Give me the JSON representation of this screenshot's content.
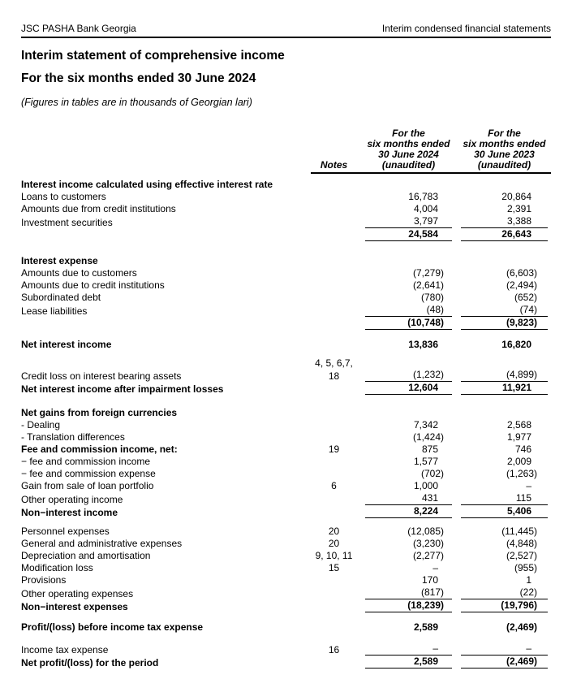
{
  "page_header": {
    "left": "JSC PASHA Bank Georgia",
    "right": "Interim condensed financial statements"
  },
  "title": {
    "line1": "Interim statement of comprehensive income",
    "line2": "For the six months ended 30 June 2024",
    "note": "(Figures in tables are in thousands of Georgian lari)"
  },
  "table": {
    "columns": {
      "notes_label": "Notes",
      "col_2024": [
        "For the",
        "six months ended",
        "30 June 2024",
        "(unaudited)"
      ],
      "col_2023": [
        "For the",
        "six months ended",
        "30 June 2023",
        "(unaudited)"
      ]
    },
    "rows": [
      {
        "label": "Interest income calculated using effective interest rate",
        "notes": "",
        "v2024": "",
        "v2023": "",
        "bold_label": true,
        "bold_values": false,
        "underline": false,
        "space_before": 0
      },
      {
        "label": "Loans to customers",
        "notes": "",
        "v2024": "16,783",
        "v2023": "20,864",
        "bold_label": false,
        "bold_values": false,
        "underline": false,
        "space_before": 0
      },
      {
        "label": "Amounts due from credit institutions",
        "notes": "",
        "v2024": "4,004",
        "v2023": "2,391",
        "bold_label": false,
        "bold_values": false,
        "underline": false,
        "space_before": 0
      },
      {
        "label": "Investment securities",
        "notes": "",
        "v2024": "3,797",
        "v2023": "3,388",
        "bold_label": false,
        "bold_values": false,
        "underline": true,
        "space_before": 1
      },
      {
        "label": "",
        "notes": "",
        "v2024": "24,584",
        "v2023": "26,643",
        "bold_label": false,
        "bold_values": true,
        "underline": true,
        "space_before": 0
      },
      {
        "label": "Interest expense",
        "notes": "",
        "v2024": "",
        "v2023": "",
        "bold_label": true,
        "bold_values": false,
        "underline": false,
        "space_before": 16
      },
      {
        "label": "Amounts due to customers",
        "notes": "",
        "v2024": "(7,279)",
        "v2023": "(6,603)",
        "bold_label": false,
        "bold_values": false,
        "underline": false,
        "space_before": 0
      },
      {
        "label": "Amounts due to credit institutions",
        "notes": "",
        "v2024": "(2,641)",
        "v2023": "(2,494)",
        "bold_label": false,
        "bold_values": false,
        "underline": false,
        "space_before": 0
      },
      {
        "label": "Subordinated debt",
        "notes": "",
        "v2024": "(780)",
        "v2023": "(652)",
        "bold_label": false,
        "bold_values": false,
        "underline": false,
        "space_before": 0
      },
      {
        "label": "Lease liabilities",
        "notes": "",
        "v2024": "(48)",
        "v2023": "(74)",
        "bold_label": false,
        "bold_values": false,
        "underline": true,
        "space_before": 1
      },
      {
        "label": "",
        "notes": "",
        "v2024": "(10,748)",
        "v2023": "(9,823)",
        "bold_label": false,
        "bold_values": true,
        "underline": true,
        "space_before": 0
      },
      {
        "label": "Net interest income",
        "notes": "",
        "v2024": "13,836",
        "v2023": "16,820",
        "bold_label": true,
        "bold_values": true,
        "underline": false,
        "space_before": 10
      },
      {
        "label": "",
        "notes": "4, 5, 6,7,",
        "v2024": "",
        "v2023": "",
        "bold_label": false,
        "bold_values": false,
        "underline": false,
        "space_before": 8
      },
      {
        "label": "Credit loss on interest bearing assets",
        "notes": "18",
        "v2024": "(1,232)",
        "v2023": "(4,899)",
        "bold_label": false,
        "bold_values": false,
        "underline": true,
        "space_before": 0
      },
      {
        "label": "Net interest income after impairment losses",
        "notes": "",
        "v2024": "12,604",
        "v2023": "11,921",
        "bold_label": true,
        "bold_values": true,
        "underline": true,
        "space_before": 0
      },
      {
        "label": "Net gains from foreign currencies",
        "notes": "",
        "v2024": "",
        "v2023": "",
        "bold_label": true,
        "bold_values": false,
        "underline": false,
        "space_before": 14
      },
      {
        "label": "- Dealing",
        "notes": "",
        "v2024": "7,342",
        "v2023": "2,568",
        "bold_label": false,
        "bold_values": false,
        "underline": false,
        "space_before": 0
      },
      {
        "label": "- Translation differences",
        "notes": "",
        "v2024": "(1,424)",
        "v2023": "1,977",
        "bold_label": false,
        "bold_values": false,
        "underline": false,
        "space_before": 0
      },
      {
        "label": "Fee and commission income, net:",
        "notes": "19",
        "v2024": "875",
        "v2023": "746",
        "bold_label": true,
        "bold_values": false,
        "underline": false,
        "space_before": 0
      },
      {
        "label": "− fee and commission income",
        "notes": "",
        "v2024": "1,577",
        "v2023": "2,009",
        "bold_label": false,
        "bold_values": false,
        "underline": false,
        "space_before": 0
      },
      {
        "label": "− fee and commission expense",
        "notes": "",
        "v2024": "(702)",
        "v2023": "(1,263)",
        "bold_label": false,
        "bold_values": false,
        "underline": false,
        "space_before": 0
      },
      {
        "label": "Gain from sale of loan portfolio",
        "notes": "6",
        "v2024": "1,000",
        "v2023": "–",
        "bold_label": false,
        "bold_values": false,
        "underline": false,
        "space_before": 0
      },
      {
        "label": "Other operating income",
        "notes": "",
        "v2024": "431",
        "v2023": "115",
        "bold_label": false,
        "bold_values": false,
        "underline": true,
        "space_before": 1
      },
      {
        "label": "Non−interest income",
        "notes": "",
        "v2024": "8,224",
        "v2023": "5,406",
        "bold_label": true,
        "bold_values": true,
        "underline": true,
        "space_before": 0
      },
      {
        "label": "Personnel expenses",
        "notes": "20",
        "v2024": "(12,085)",
        "v2023": "(11,445)",
        "bold_label": false,
        "bold_values": false,
        "underline": false,
        "space_before": 8
      },
      {
        "label": "General and administrative expenses",
        "notes": "20",
        "v2024": "(3,230)",
        "v2023": "(4,848)",
        "bold_label": false,
        "bold_values": false,
        "underline": false,
        "space_before": 0
      },
      {
        "label": "Depreciation and amortisation",
        "notes": "9, 10, 11",
        "v2024": "(2,277)",
        "v2023": "(2,527)",
        "bold_label": false,
        "bold_values": false,
        "underline": false,
        "space_before": 0
      },
      {
        "label": "Modification loss",
        "notes": "15",
        "v2024": "–",
        "v2023": "(955)",
        "bold_label": false,
        "bold_values": false,
        "underline": false,
        "space_before": 0
      },
      {
        "label": "Provisions",
        "notes": "",
        "v2024": "170",
        "v2023": "1",
        "bold_label": false,
        "bold_values": false,
        "underline": false,
        "space_before": 0
      },
      {
        "label": "Other operating expenses",
        "notes": "",
        "v2024": "(817)",
        "v2023": "(22)",
        "bold_label": false,
        "bold_values": false,
        "underline": true,
        "space_before": 1
      },
      {
        "label": "Non−interest expenses",
        "notes": "",
        "v2024": "(18,239)",
        "v2023": "(19,796)",
        "bold_label": true,
        "bold_values": true,
        "underline": true,
        "space_before": 0
      },
      {
        "label": "Profit/(loss) before income tax expense",
        "notes": "",
        "v2024": "2,589",
        "v2023": "(2,469)",
        "bold_label": true,
        "bold_values": true,
        "underline": false,
        "space_before": 10
      },
      {
        "label": "Income tax expense",
        "notes": "16",
        "v2024": "–",
        "v2023": "–",
        "bold_label": false,
        "bold_values": false,
        "underline": true,
        "space_before": 12
      },
      {
        "label": "Net profit/(loss) for the period",
        "notes": "",
        "v2024": "2,589",
        "v2023": "(2,469)",
        "bold_label": true,
        "bold_values": true,
        "underline": true,
        "space_before": 0
      }
    ]
  }
}
